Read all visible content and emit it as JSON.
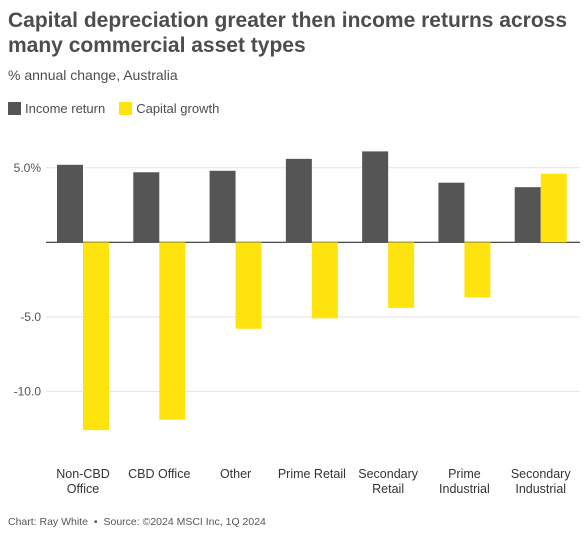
{
  "header": {
    "title": "Capital depreciation greater then income returns across many commercial asset types",
    "subtitle": "% annual change, Australia"
  },
  "legend": [
    {
      "label": "Income return",
      "color": "#555555"
    },
    {
      "label": "Capital growth",
      "color": "#ffe30e"
    }
  ],
  "footer": {
    "chart_credit": "Chart: Ray White",
    "bullet": "•",
    "source": "Source: ©2024 MSCI Inc, 1Q 2024"
  },
  "chart_data": {
    "type": "bar",
    "title": "Capital depreciation greater then income returns across many commercial asset types",
    "subtitle": "% annual change, Australia",
    "categories": [
      [
        "Non-CBD",
        "Office"
      ],
      [
        "CBD Office"
      ],
      [
        "Other"
      ],
      [
        "Prime Retail"
      ],
      [
        "Secondary",
        "Retail"
      ],
      [
        "Prime",
        "Industrial"
      ],
      [
        "Secondary",
        "Industrial"
      ]
    ],
    "series": [
      {
        "name": "Income return",
        "color": "#555555",
        "values": [
          5.2,
          4.7,
          4.8,
          5.6,
          6.1,
          4.0,
          3.7
        ]
      },
      {
        "name": "Capital growth",
        "color": "#ffe30e",
        "values": [
          -12.6,
          -11.9,
          -5.8,
          -5.1,
          -4.4,
          -3.7,
          4.6
        ]
      }
    ],
    "ytick_values": [
      5,
      0,
      -5,
      -10
    ],
    "ytick_labels": [
      "5.0%",
      "",
      "-5.0",
      "-10.0"
    ],
    "ylim": [
      -14.2,
      7.2
    ],
    "grid": true,
    "legend_position": "top-left"
  }
}
